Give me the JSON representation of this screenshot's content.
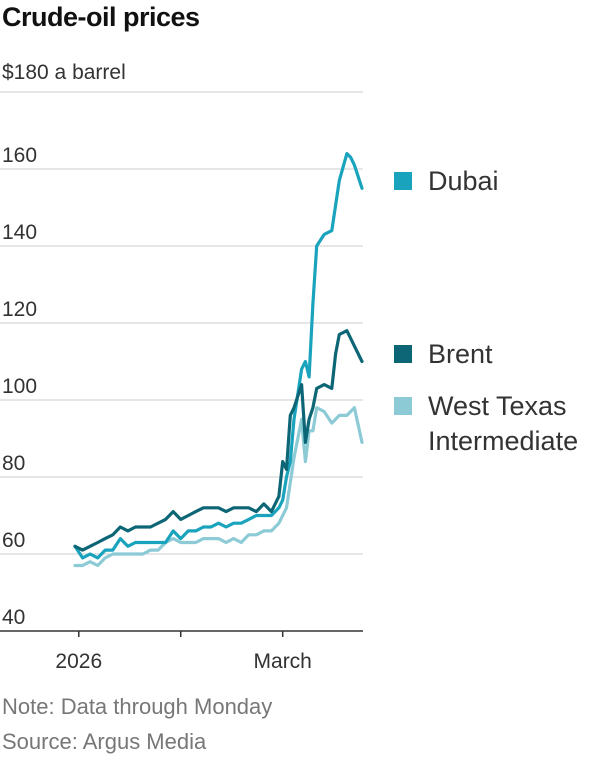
{
  "chart_data": {
    "type": "line",
    "title": "Crude-oil prices",
    "unit_label": "$180 a barrel",
    "ylim": [
      40,
      180
    ],
    "yticks": [
      40,
      60,
      80,
      100,
      120,
      140,
      160
    ],
    "xlim": [
      0,
      76
    ],
    "xticks": [
      {
        "x": 1,
        "label": "2026"
      },
      {
        "x": 28,
        "label": ""
      },
      {
        "x": 55,
        "label": "March"
      }
    ],
    "colors": {
      "Dubai": "#1aa3bd",
      "Brent": "#0d6675",
      "West Texas Intermediate": "#8ccbd6",
      "grid": "#cccccc",
      "axis": "#333333"
    },
    "series": [
      {
        "name": "Dubai",
        "legend_lines": [
          "Dubai"
        ],
        "x": [
          0,
          2,
          4,
          6,
          8,
          10,
          12,
          14,
          16,
          18,
          20,
          22,
          24,
          26,
          28,
          30,
          32,
          34,
          36,
          38,
          40,
          42,
          44,
          46,
          48,
          50,
          52,
          54,
          55,
          56,
          57,
          58,
          60,
          61,
          62,
          63,
          64,
          66,
          68,
          70,
          72,
          73,
          74,
          76
        ],
        "values": [
          62,
          59,
          60,
          59,
          61,
          61,
          64,
          62,
          63,
          63,
          63,
          63,
          63,
          66,
          64,
          66,
          66,
          67,
          67,
          68,
          67,
          68,
          68,
          69,
          70,
          70,
          70,
          72,
          74,
          80,
          84,
          95,
          108,
          110,
          106,
          125,
          140,
          143,
          144,
          157,
          164,
          163,
          161,
          155
        ]
      },
      {
        "name": "Brent",
        "legend_lines": [
          "Brent"
        ],
        "x": [
          0,
          2,
          4,
          6,
          8,
          10,
          12,
          14,
          16,
          18,
          20,
          22,
          24,
          26,
          28,
          30,
          32,
          34,
          36,
          38,
          40,
          42,
          44,
          46,
          48,
          50,
          52,
          54,
          55,
          56,
          57,
          58,
          60,
          61,
          62,
          63,
          64,
          66,
          68,
          69,
          70,
          72,
          74,
          76
        ],
        "values": [
          62,
          61,
          62,
          63,
          64,
          65,
          67,
          66,
          67,
          67,
          67,
          68,
          69,
          71,
          69,
          70,
          71,
          72,
          72,
          72,
          71,
          72,
          72,
          72,
          71,
          73,
          71,
          75,
          84,
          82,
          96,
          98,
          104,
          89,
          95,
          98,
          103,
          104,
          103,
          112,
          117,
          118,
          114,
          110
        ]
      },
      {
        "name": "West Texas Intermediate",
        "legend_lines": [
          "West Texas",
          "Intermediate"
        ],
        "x": [
          0,
          2,
          4,
          6,
          8,
          10,
          12,
          14,
          16,
          18,
          20,
          22,
          24,
          26,
          28,
          30,
          32,
          34,
          36,
          38,
          40,
          42,
          44,
          46,
          48,
          50,
          52,
          54,
          56,
          58,
          60,
          61,
          62,
          63,
          64,
          66,
          68,
          70,
          72,
          74,
          76
        ],
        "values": [
          57,
          57,
          58,
          57,
          59,
          60,
          60,
          60,
          60,
          60,
          61,
          61,
          63,
          64,
          63,
          63,
          63,
          64,
          64,
          64,
          63,
          64,
          63,
          65,
          65,
          66,
          66,
          68,
          72,
          85,
          95,
          84,
          92,
          92,
          98,
          97,
          94,
          96,
          96,
          98,
          89
        ]
      }
    ]
  },
  "footer": {
    "note": "Note: Data through Monday",
    "source": "Source: Argus Media"
  }
}
